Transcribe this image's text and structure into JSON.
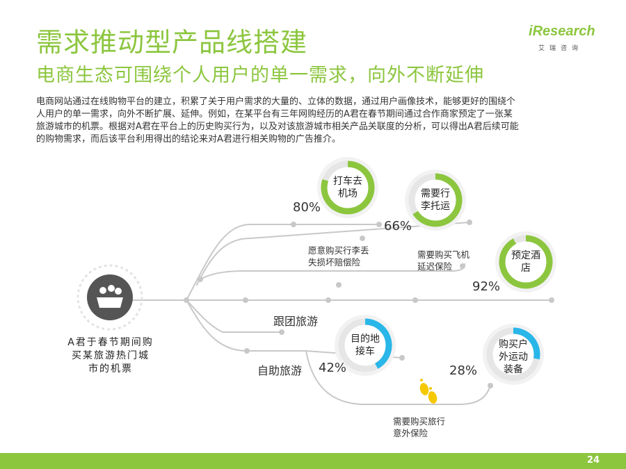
{
  "header": {
    "title": "需求推动型产品线搭建",
    "subtitle": "电商生态可围绕个人用户的单一需求，向外不断延伸"
  },
  "logo": {
    "brand_prefix": "i",
    "brand": "Research",
    "sub": "艾瑞咨询"
  },
  "description": [
    "电商网站通过在线购物平台的建立，积累了关于用户需求的大量的、立体的数据，通过用户画像技术，能够更好的围绕个",
    "人用户的单一需求，向外不断扩展、延伸。例如，在某平台有三年网购经历的A君在春节期间通过合作商家预定了一张某",
    "旅游城市的机票。根据对A君在平台上的历史购买行为，以及对该旅游城市相关产品关联度的分析，可以得出A君后续可能",
    "的购物需求，而后该平台利用得出的结论来对A君进行相关购物的广告推介。"
  ],
  "start": {
    "icon": "group-icon",
    "label_lines": [
      "A君于春节期间购",
      "买某旅游热门城",
      "市的机票"
    ]
  },
  "rings": [
    {
      "id": "taxi",
      "label_lines": [
        "打车去",
        "机场"
      ],
      "percent": "80%",
      "value": 0.8,
      "color": "#8cc63f"
    },
    {
      "id": "luggage",
      "label_lines": [
        "需要行",
        "李托运"
      ],
      "percent": "66%",
      "value": 0.66,
      "color": "#8cc63f"
    },
    {
      "id": "hotel",
      "label_lines": [
        "预定酒",
        "店"
      ],
      "percent": "92%",
      "value": 0.92,
      "color": "#8cc63f"
    },
    {
      "id": "pickup",
      "label_lines": [
        "目的地",
        "接车"
      ],
      "percent": "42%",
      "value": 0.42,
      "color": "#29b6e8"
    },
    {
      "id": "outdoor",
      "label_lines": [
        "购买户",
        "外运动",
        "装备"
      ],
      "percent": "28%",
      "value": 0.28,
      "color": "#29b6e8"
    }
  ],
  "notes": {
    "baggage_insurance": [
      "愿意购买行李丢",
      "失损坏赔偿险"
    ],
    "flight_delay": [
      "需要购买飞机",
      "延迟保险"
    ],
    "travel_insurance": [
      "需要购买旅行",
      "意外保险"
    ]
  },
  "branches": {
    "group_tour": "跟团旅游",
    "self_guided": "自助旅游"
  },
  "footer": {
    "page": "24"
  },
  "colors": {
    "green": "#8cc63f",
    "blue": "#29b6e8",
    "ring_bg": "#e6e6e6",
    "line": "#c8c8c8",
    "footprint": "#f5c800"
  }
}
